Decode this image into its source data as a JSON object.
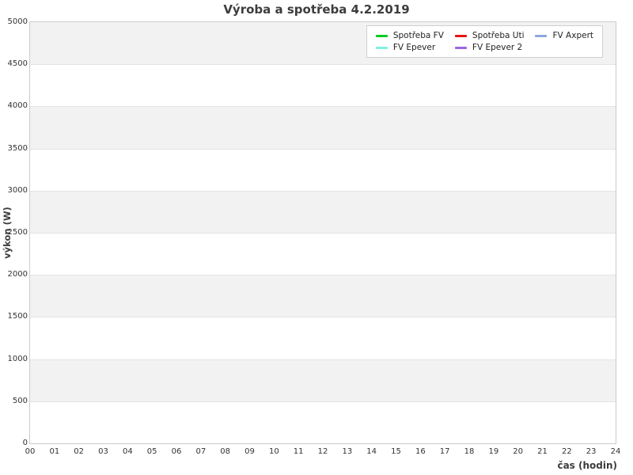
{
  "chart_data": {
    "type": "line",
    "title": "Výroba a spotřeba 4.2.2019",
    "xlabel": "čas (hodin)",
    "ylabel": "výkon (W)",
    "xlim": [
      0,
      24
    ],
    "ylim": [
      0,
      5000
    ],
    "x_ticks": [
      "00",
      "01",
      "02",
      "03",
      "04",
      "05",
      "06",
      "07",
      "08",
      "09",
      "10",
      "11",
      "12",
      "13",
      "14",
      "15",
      "16",
      "17",
      "18",
      "19",
      "20",
      "21",
      "22",
      "23",
      "24"
    ],
    "y_ticks": [
      0,
      500,
      1000,
      1500,
      2000,
      2500,
      3000,
      3500,
      4000,
      4500,
      5000
    ],
    "grid": "horizontal bands every 500 W, no vertical gridlines",
    "band_colors": {
      "gray": "#f2f2f2",
      "white": "#ffffff"
    },
    "legend_position": "top-right inside plot",
    "series": [
      {
        "name": "Spotřeba FV",
        "color": "#00cc22",
        "values": []
      },
      {
        "name": "Spotřeba Uti",
        "color": "#e51515",
        "values": []
      },
      {
        "name": "FV Axpert",
        "color": "#8ba7dc",
        "values": []
      },
      {
        "name": "FV Epever",
        "color": "#7ff0e0",
        "values": []
      },
      {
        "name": "FV Epever 2",
        "color": "#9a66e0",
        "values": []
      }
    ],
    "visible_data": "none (plot area is empty, no series lines drawn)"
  },
  "colors": {
    "title_text": "#3d3d3d",
    "tick_text": "#333333",
    "plot_border": "#cccccc",
    "gridline": "#e4e4e4"
  }
}
